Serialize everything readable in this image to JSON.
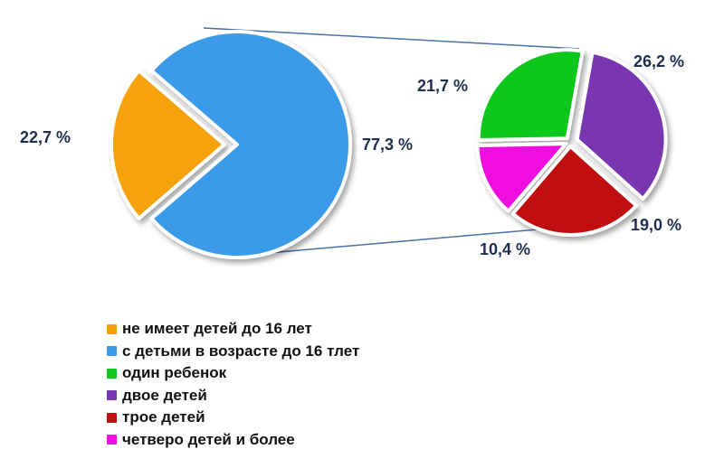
{
  "chart_data": {
    "type": "pie",
    "title": "",
    "main_pie": {
      "slices": [
        {
          "label": "не имеет детей до 16 лет",
          "value": 22.7,
          "value_label": "22,7 %",
          "color": "#f5a20a"
        },
        {
          "label": "с детьми в возрасте до 16 тлет",
          "value": 77.3,
          "value_label": "77,3 %",
          "color": "#3a9be8"
        }
      ]
    },
    "breakdown_pie": {
      "of": "с детьми в возрасте до 16 тлет",
      "slices": [
        {
          "label": "двое детей",
          "value": 26.2,
          "value_label": "26,2 %",
          "color": "#7a35b0"
        },
        {
          "label": "трое детей",
          "value": 19.0,
          "value_label": "19,0 %",
          "color": "#c01010"
        },
        {
          "label": "четверо детей и более",
          "value": 10.4,
          "value_label": "10,4 %",
          "color": "#f010e0"
        },
        {
          "label": "один ребенок",
          "value": 21.7,
          "value_label": "21,7 %",
          "color": "#10c81a"
        }
      ]
    },
    "legend": {
      "placement": "bottom",
      "items": [
        {
          "label": "не имеет детей до 16 лет",
          "color": "#f5a20a"
        },
        {
          "label": "с детьми в возрасте до 16 тлет",
          "color": "#3a9be8"
        },
        {
          "label": "один ребенок",
          "color": "#10c81a"
        },
        {
          "label": "двое детей",
          "color": "#7a35b0"
        },
        {
          "label": "трое детей",
          "color": "#c01010"
        },
        {
          "label": "четверо детей и более",
          "color": "#f010e0"
        }
      ]
    },
    "connector_color": "#4a6fa5"
  }
}
